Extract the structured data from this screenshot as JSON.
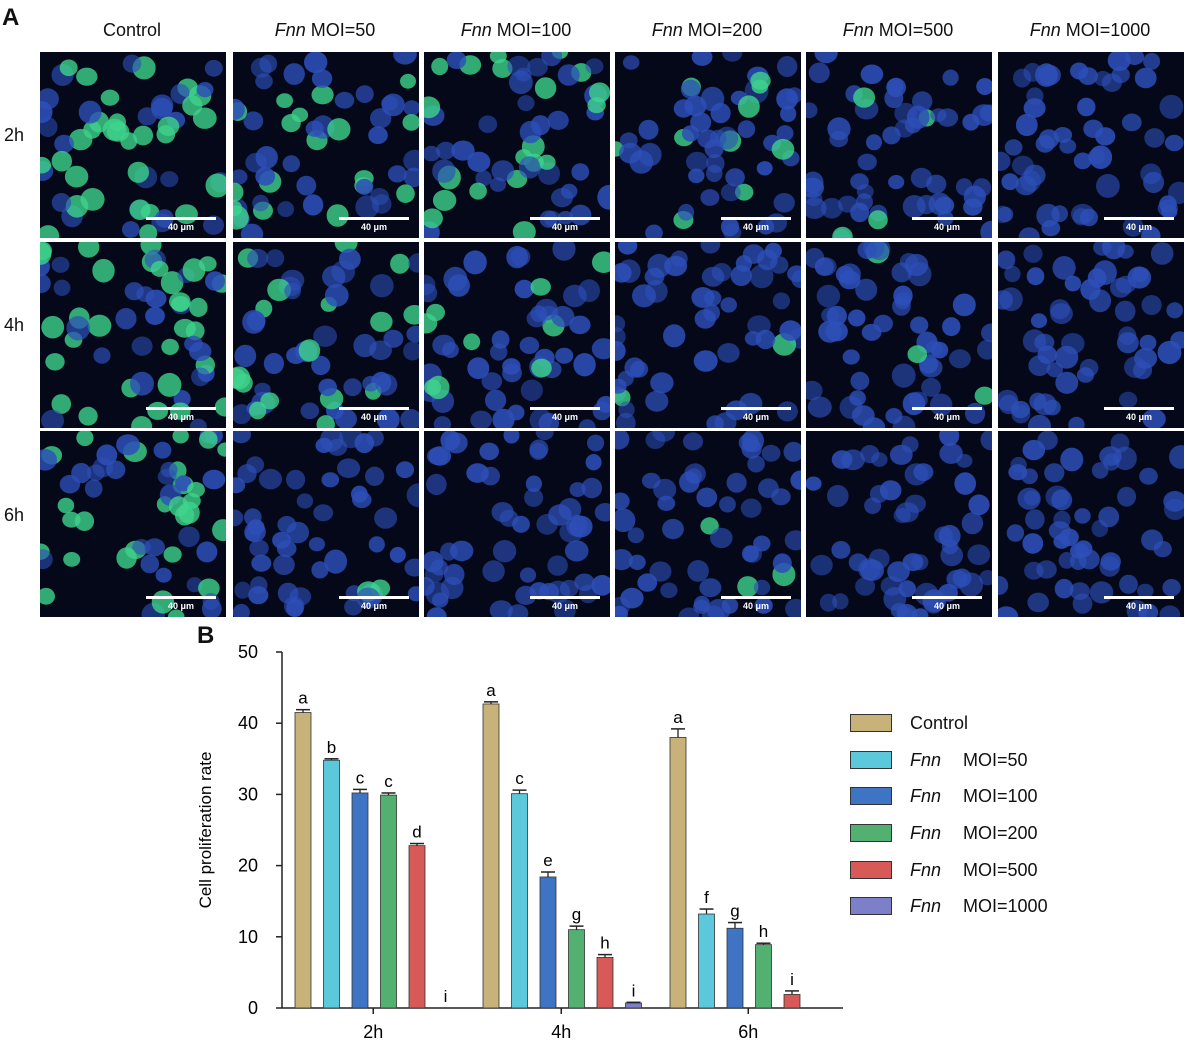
{
  "panel_a": {
    "letter": "A",
    "columns": [
      {
        "prefix": "",
        "label": "Control"
      },
      {
        "prefix": "Fnn",
        "label": " MOI=50"
      },
      {
        "prefix": "Fnn",
        "label": " MOI=100"
      },
      {
        "prefix": "Fnn",
        "label": " MOI=200"
      },
      {
        "prefix": "Fnn",
        "label": " MOI=500"
      },
      {
        "prefix": "Fnn",
        "label": " MOI=1000"
      }
    ],
    "rows": [
      "2h",
      "4h",
      "6h"
    ],
    "scale_bar_label": "40 μm",
    "colors": {
      "nucleus_blue": "#2d4fb8",
      "edu_green": "#3fd38c",
      "background": "#040818"
    }
  },
  "panel_b": {
    "letter": "B"
  },
  "chart_data": {
    "type": "bar",
    "title": "",
    "xlabel": "",
    "ylabel": "Cell proliferation rate",
    "ylim": [
      0,
      50
    ],
    "yticks": [
      0,
      10,
      20,
      30,
      40,
      50
    ],
    "categories": [
      "2h",
      "4h",
      "6h"
    ],
    "series": [
      {
        "name_prefix": "",
        "name": "Control",
        "color": "#c9b27a",
        "values": [
          41.5,
          42.7,
          38.0
        ],
        "errors": [
          0.4,
          0.3,
          1.2
        ],
        "letters": [
          "a",
          "a",
          "a"
        ]
      },
      {
        "name_prefix": "Fnn",
        "name": "MOI=50",
        "color": "#5bc8dc",
        "values": [
          34.8,
          30.1,
          13.2
        ],
        "errors": [
          0.2,
          0.5,
          0.7
        ],
        "letters": [
          "b",
          "c",
          "f"
        ]
      },
      {
        "name_prefix": "Fnn",
        "name": "MOI=100",
        "color": "#3f74c4",
        "values": [
          30.2,
          18.4,
          11.2
        ],
        "errors": [
          0.5,
          0.7,
          0.8
        ],
        "letters": [
          "c",
          "e",
          "g"
        ]
      },
      {
        "name_prefix": "Fnn",
        "name": "MOI=200",
        "color": "#52b071",
        "values": [
          29.9,
          11.0,
          8.9
        ],
        "errors": [
          0.3,
          0.5,
          0.2
        ],
        "letters": [
          "c",
          "g",
          "h"
        ]
      },
      {
        "name_prefix": "Fnn",
        "name": "MOI=500",
        "color": "#d85a58",
        "values": [
          22.8,
          7.1,
          1.9
        ],
        "errors": [
          0.3,
          0.4,
          0.5
        ],
        "letters": [
          "d",
          "h",
          "i"
        ]
      },
      {
        "name_prefix": "Fnn",
        "name": "MOI=1000",
        "color": "#7c80c8",
        "values": [
          0.0,
          0.7,
          0.0
        ],
        "errors": [
          0,
          0.1,
          0
        ],
        "letters": [
          "i",
          "i",
          ""
        ]
      }
    ],
    "legend_position": "right",
    "grid": false
  }
}
